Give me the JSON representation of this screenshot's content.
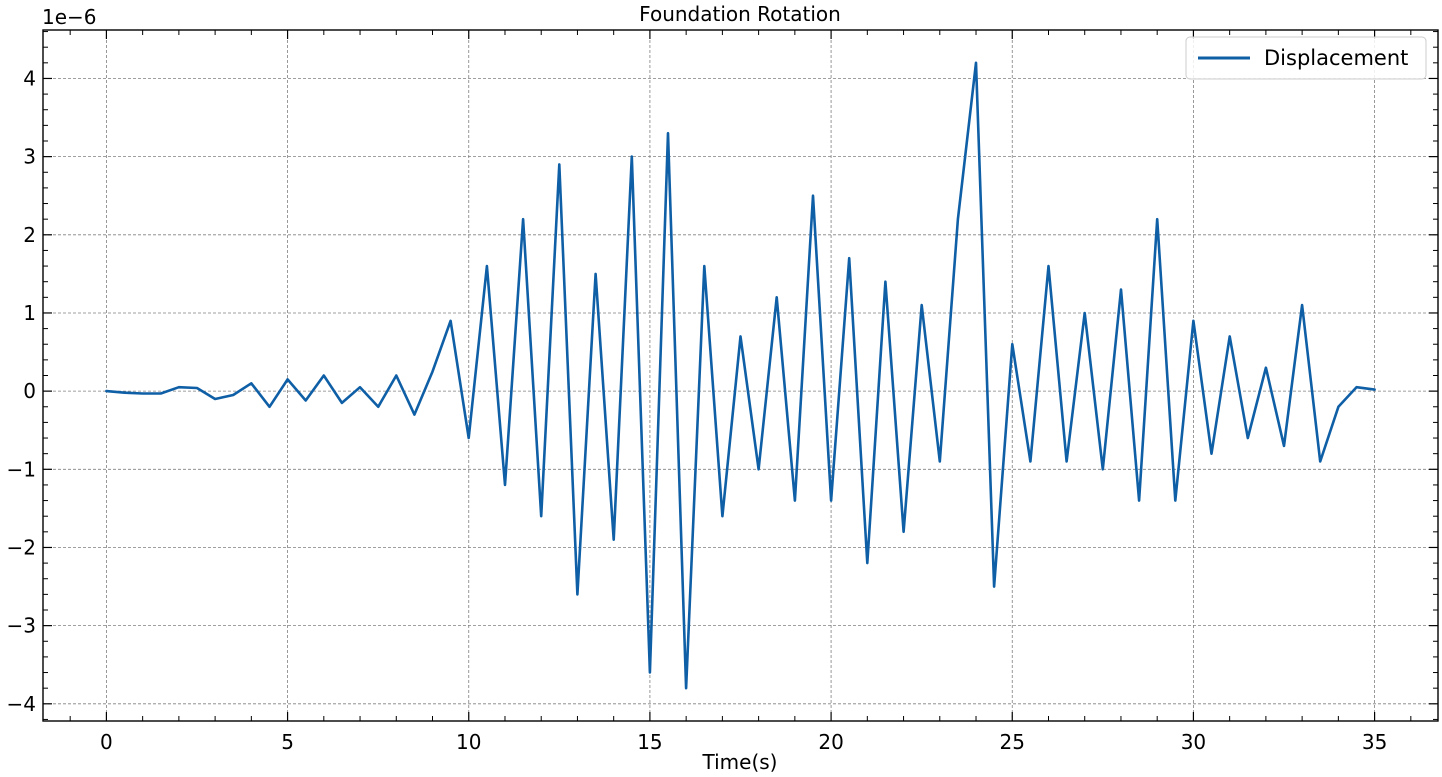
{
  "chart_data": {
    "type": "line",
    "title": "Foundation Rotation",
    "xlabel": "Time(s)",
    "ylabel": "",
    "offset_label": "1e−6",
    "xlim": [
      -1.75,
      36.75
    ],
    "ylim": [
      -4.22,
      4.62
    ],
    "xticks": [
      0,
      5,
      10,
      15,
      20,
      25,
      30,
      35
    ],
    "xtick_labels": [
      "0",
      "5",
      "10",
      "15",
      "20",
      "25",
      "30",
      "35"
    ],
    "yticks": [
      -4,
      -3,
      -2,
      -1,
      0,
      1,
      2,
      3,
      4
    ],
    "ytick_labels": [
      "−4",
      "−3",
      "−2",
      "−1",
      "0",
      "1",
      "2",
      "3",
      "4"
    ],
    "grid": true,
    "legend_position": "top-right",
    "series": [
      {
        "name": "Displacement",
        "color": "#0f5fa6",
        "x": [
          0.0,
          0.5,
          1.0,
          1.5,
          2.0,
          2.5,
          3.0,
          3.5,
          4.0,
          4.5,
          5.0,
          5.5,
          6.0,
          6.5,
          7.0,
          7.5,
          8.0,
          8.5,
          9.0,
          9.5,
          10.0,
          10.5,
          11.0,
          11.5,
          12.0,
          12.5,
          13.0,
          13.5,
          14.0,
          14.5,
          15.0,
          15.5,
          16.0,
          16.5,
          17.0,
          17.5,
          18.0,
          18.5,
          19.0,
          19.5,
          20.0,
          20.5,
          21.0,
          21.5,
          22.0,
          22.5,
          23.0,
          23.5,
          24.0,
          24.5,
          25.0,
          25.5,
          26.0,
          26.5,
          27.0,
          27.5,
          28.0,
          28.5,
          29.0,
          29.5,
          30.0,
          30.5,
          31.0,
          31.5,
          32.0,
          32.5,
          33.0,
          33.5,
          34.0,
          34.5,
          35.0
        ],
        "values": [
          0.0,
          -0.02,
          -0.03,
          -0.03,
          0.05,
          0.04,
          -0.1,
          -0.05,
          0.1,
          -0.2,
          0.15,
          -0.12,
          0.2,
          -0.15,
          0.05,
          -0.2,
          0.2,
          -0.3,
          0.25,
          0.9,
          -0.6,
          1.6,
          -1.2,
          2.2,
          -1.6,
          2.9,
          -2.6,
          1.5,
          -1.9,
          3.0,
          -3.6,
          3.3,
          -3.8,
          1.6,
          -1.6,
          0.7,
          -1.0,
          1.2,
          -1.4,
          2.5,
          -1.4,
          1.7,
          -2.2,
          1.4,
          -1.8,
          1.1,
          -0.9,
          2.2,
          4.2,
          -2.5,
          0.6,
          -0.9,
          1.6,
          -0.9,
          1.0,
          -1.0,
          1.3,
          -1.4,
          2.2,
          -1.4,
          0.9,
          -0.8,
          0.7,
          -0.6,
          0.3,
          -0.7,
          1.1,
          -0.9,
          -0.2,
          0.05,
          0.02
        ]
      }
    ]
  }
}
